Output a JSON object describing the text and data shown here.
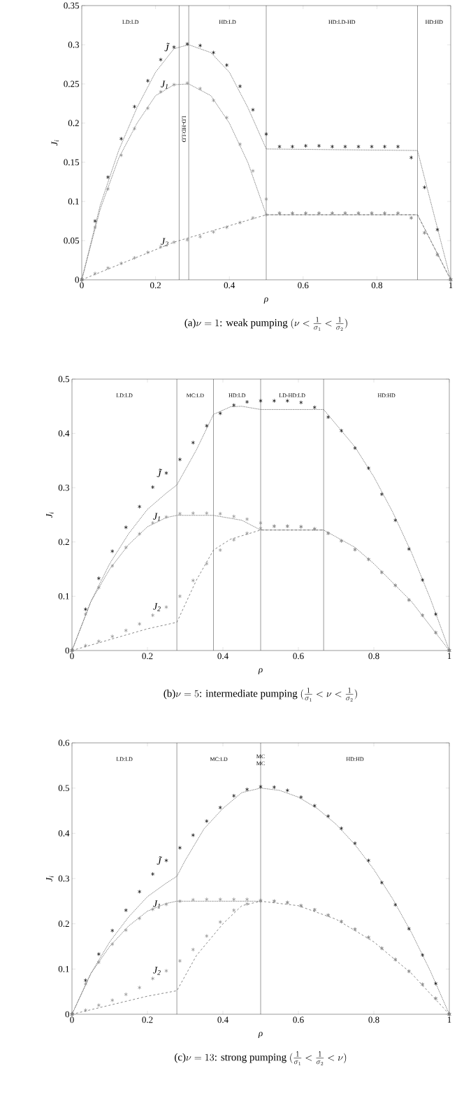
{
  "chart_data": [
    {
      "type": "scatter",
      "title": "\\text{(a)}\\nu = 1\\text{: weak pumping }(\\nu < \\frac{1}{\\sigma_1} < \\frac{1}{\\sigma_2})",
      "xlabel": "ρ",
      "ylabel": "J$_{i}$",
      "x": [
        0,
        0.036,
        0.071,
        0.107,
        0.143,
        0.179,
        0.214,
        0.25,
        0.286,
        0.321,
        0.357,
        0.393,
        0.429,
        0.464,
        0.5,
        0.536,
        0.571,
        0.607,
        0.643,
        0.679,
        0.714,
        0.75,
        0.786,
        0.821,
        0.857,
        0.893,
        0.929,
        0.964,
        1
      ],
      "xlim": [
        0,
        1
      ],
      "xticks": [
        0,
        0.2,
        0.4,
        0.6,
        0.8,
        1
      ],
      "ylim": [
        0,
        0.35
      ],
      "yticks": [
        0,
        0.05,
        0.1,
        0.15,
        0.2,
        0.25,
        0.3,
        0.35
      ],
      "marker": "cross",
      "series": [
        {
          "name": "J̃",
          "color": "#000000",
          "values": [
            0,
            0.075,
            0.131,
            0.18,
            0.221,
            0.254,
            0.281,
            0.297,
            0.301,
            0.299,
            0.29,
            0.274,
            0.247,
            0.217,
            0.186,
            0.17,
            0.17,
            0.171,
            0.171,
            0.17,
            0.17,
            0.17,
            0.17,
            0.17,
            0.17,
            0.156,
            0.118,
            0.064,
            0
          ]
        },
        {
          "name": "J$_{1}$",
          "color": "#888888",
          "values": [
            0,
            0.067,
            0.116,
            0.159,
            0.193,
            0.219,
            0.24,
            0.249,
            0.251,
            0.244,
            0.229,
            0.207,
            0.173,
            0.139,
            0.103,
            0.085,
            0.085,
            0.085,
            0.085,
            0.085,
            0.085,
            0.085,
            0.085,
            0.085,
            0.085,
            0.079,
            0.06,
            0.032,
            0
          ]
        },
        {
          "name": "J$_{2}$",
          "color": "#888888",
          "values": [
            0,
            0.008,
            0.015,
            0.021,
            0.028,
            0.035,
            0.042,
            0.048,
            0.051,
            0.055,
            0.061,
            0.067,
            0.073,
            0.079,
            0.083,
            0.085,
            0.085,
            0.085,
            0.085,
            0.085,
            0.085,
            0.085,
            0.085,
            0.085,
            0.085,
            0.079,
            0.06,
            0.032,
            0
          ]
        },
        {
          "type": "line",
          "marker": "none",
          "line_style": "dotted",
          "color": "#555555",
          "x": [
            0,
            0.05,
            0.1,
            0.15,
            0.2,
            0.25,
            0.29,
            0.35,
            0.4,
            0.45,
            0.5,
            0.91,
            1
          ],
          "values": [
            0,
            0.095,
            0.165,
            0.22,
            0.265,
            0.295,
            0.3,
            0.29,
            0.265,
            0.22,
            0.167,
            0.165,
            0
          ]
        },
        {
          "type": "line",
          "marker": "none",
          "line_style": "dotted",
          "color": "#555555",
          "x": [
            0,
            0.05,
            0.1,
            0.15,
            0.2,
            0.25,
            0.29,
            0.35,
            0.4,
            0.45,
            0.5,
            0.91,
            1
          ],
          "values": [
            0,
            0.09,
            0.155,
            0.2,
            0.235,
            0.249,
            0.25,
            0.235,
            0.2,
            0.15,
            0.083,
            0.083,
            0
          ]
        },
        {
          "type": "line",
          "marker": "none",
          "line_style": "dashed",
          "color": "#555555",
          "x": [
            0,
            0.25,
            0.5,
            0.91,
            1
          ],
          "values": [
            0,
            0.048,
            0.083,
            0.083,
            0
          ]
        }
      ],
      "ref_lines": [
        {
          "axis": "x",
          "value": 0.264
        },
        {
          "axis": "x",
          "value": 0.29
        },
        {
          "axis": "x",
          "value": 0.5
        },
        {
          "axis": "x",
          "value": 0.91
        }
      ],
      "annotations": [
        "LD:LD",
        "LD-HD:LD",
        "HD:LD",
        "HD:LD-HD",
        "HD:HD"
      ]
    },
    {
      "type": "scatter",
      "title": "\\text{(b)}\\nu = 5\\text{: intermediate pumping }(\\frac{1}{\\sigma_1} < \\nu < \\frac{1}{\\sigma_2})",
      "xlabel": "ρ",
      "ylabel": "J$_{i}$",
      "x": [
        0,
        0.036,
        0.071,
        0.107,
        0.143,
        0.179,
        0.214,
        0.25,
        0.286,
        0.321,
        0.357,
        0.393,
        0.429,
        0.464,
        0.5,
        0.536,
        0.571,
        0.607,
        0.643,
        0.679,
        0.714,
        0.75,
        0.786,
        0.821,
        0.857,
        0.893,
        0.929,
        0.964,
        1
      ],
      "xlim": [
        0,
        1
      ],
      "xticks": [
        0,
        0.2,
        0.4,
        0.6,
        0.8,
        1
      ],
      "ylim": [
        0,
        0.5
      ],
      "yticks": [
        0,
        0.1,
        0.2,
        0.3,
        0.4,
        0.5
      ],
      "marker": "cross",
      "series": [
        {
          "name": "J̃",
          "color": "#000000",
          "values": [
            0,
            0.076,
            0.133,
            0.183,
            0.227,
            0.265,
            0.301,
            0.327,
            0.352,
            0.383,
            0.414,
            0.437,
            0.452,
            0.458,
            0.46,
            0.46,
            0.46,
            0.457,
            0.448,
            0.43,
            0.405,
            0.373,
            0.336,
            0.288,
            0.24,
            0.187,
            0.13,
            0.067,
            0
          ]
        },
        {
          "name": "J$_{1}$",
          "color": "#888888",
          "values": [
            0,
            0.067,
            0.116,
            0.156,
            0.19,
            0.215,
            0.235,
            0.246,
            0.252,
            0.253,
            0.253,
            0.252,
            0.247,
            0.242,
            0.235,
            0.229,
            0.229,
            0.228,
            0.224,
            0.216,
            0.202,
            0.186,
            0.168,
            0.144,
            0.12,
            0.093,
            0.065,
            0.033,
            0
          ]
        },
        {
          "name": "J$_{2}$",
          "color": "#888888",
          "values": [
            0,
            0.009,
            0.017,
            0.026,
            0.037,
            0.049,
            0.065,
            0.08,
            0.1,
            0.129,
            0.16,
            0.185,
            0.204,
            0.216,
            0.225,
            0.229,
            0.229,
            0.228,
            0.224,
            0.216,
            0.202,
            0.186,
            0.168,
            0.144,
            0.12,
            0.093,
            0.065,
            0.033,
            0
          ]
        },
        {
          "type": "line",
          "marker": "none",
          "line_style": "dotted",
          "color": "#555555",
          "x": [
            0,
            0.05,
            0.1,
            0.15,
            0.2,
            0.25,
            0.278,
            0.33,
            0.375,
            0.42,
            0.45,
            0.5,
            0.667,
            0.75,
            0.8,
            0.85,
            0.9,
            0.95,
            1
          ],
          "values": [
            0,
            0.09,
            0.16,
            0.215,
            0.26,
            0.29,
            0.305,
            0.37,
            0.435,
            0.449,
            0.45,
            0.444,
            0.444,
            0.375,
            0.32,
            0.255,
            0.18,
            0.095,
            0
          ]
        },
        {
          "type": "line",
          "marker": "none",
          "line_style": "dotted",
          "color": "#555555",
          "x": [
            0,
            0.05,
            0.1,
            0.15,
            0.2,
            0.25,
            0.278,
            0.375,
            0.45,
            0.5,
            0.667,
            0.75,
            0.8,
            0.85,
            0.9,
            0.95,
            1
          ],
          "values": [
            0,
            0.09,
            0.15,
            0.195,
            0.228,
            0.245,
            0.249,
            0.249,
            0.24,
            0.222,
            0.222,
            0.19,
            0.16,
            0.125,
            0.09,
            0.045,
            0
          ]
        },
        {
          "type": "line",
          "marker": "none",
          "line_style": "dashed",
          "color": "#555555",
          "x": [
            0,
            0.1,
            0.2,
            0.278,
            0.33,
            0.375,
            0.42,
            0.5,
            0.667
          ],
          "values": [
            0,
            0.02,
            0.04,
            0.052,
            0.13,
            0.185,
            0.205,
            0.222,
            0.222
          ]
        }
      ],
      "ref_lines": [
        {
          "axis": "x",
          "value": 0.278
        },
        {
          "axis": "x",
          "value": 0.375
        },
        {
          "axis": "x",
          "value": 0.5
        },
        {
          "axis": "x",
          "value": 0.667
        }
      ],
      "annotations": [
        "LD:LD",
        "MC:LD",
        "HD:LD",
        "LD-HD:LD",
        "HD:HD"
      ]
    },
    {
      "type": "scatter",
      "title": "\\text{(c)}\\nu = 13\\text{: strong pumping }(\\frac{1}{\\sigma_1} < \\frac{1}{\\sigma_2} < \\nu)",
      "xlabel": "ρ",
      "ylabel": "J$_{i}$",
      "x": [
        0,
        0.036,
        0.071,
        0.107,
        0.143,
        0.179,
        0.214,
        0.25,
        0.286,
        0.321,
        0.357,
        0.393,
        0.429,
        0.464,
        0.5,
        0.536,
        0.571,
        0.607,
        0.643,
        0.679,
        0.714,
        0.75,
        0.786,
        0.821,
        0.857,
        0.893,
        0.929,
        0.964,
        1
      ],
      "xlim": [
        0,
        1
      ],
      "xticks": [
        0,
        0.2,
        0.4,
        0.6,
        0.8,
        1
      ],
      "ylim": [
        0,
        0.6
      ],
      "yticks": [
        0,
        0.1,
        0.2,
        0.3,
        0.4,
        0.5,
        0.6
      ],
      "marker": "cross",
      "series": [
        {
          "name": "J̃",
          "color": "#000000",
          "values": [
            0,
            0.075,
            0.133,
            0.185,
            0.23,
            0.271,
            0.31,
            0.34,
            0.368,
            0.396,
            0.427,
            0.457,
            0.483,
            0.497,
            0.503,
            0.502,
            0.495,
            0.48,
            0.461,
            0.438,
            0.411,
            0.378,
            0.34,
            0.291,
            0.242,
            0.189,
            0.131,
            0.068,
            0
          ]
        },
        {
          "name": "J$_{1}$",
          "color": "#888888",
          "values": [
            0,
            0.067,
            0.115,
            0.155,
            0.186,
            0.212,
            0.232,
            0.243,
            0.25,
            0.253,
            0.254,
            0.254,
            0.254,
            0.254,
            0.252,
            0.25,
            0.247,
            0.24,
            0.231,
            0.219,
            0.205,
            0.188,
            0.17,
            0.146,
            0.121,
            0.095,
            0.066,
            0.035,
            0
          ]
        },
        {
          "name": "J$_{2}$",
          "color": "#888888",
          "values": [
            0,
            0.009,
            0.02,
            0.031,
            0.044,
            0.059,
            0.079,
            0.096,
            0.118,
            0.143,
            0.173,
            0.204,
            0.23,
            0.244,
            0.25,
            0.25,
            0.247,
            0.24,
            0.231,
            0.219,
            0.205,
            0.188,
            0.17,
            0.146,
            0.121,
            0.095,
            0.066,
            0.035,
            0
          ]
        },
        {
          "type": "line",
          "marker": "none",
          "line_style": "dotted",
          "color": "#555555",
          "x": [
            0,
            0.05,
            0.1,
            0.15,
            0.2,
            0.25,
            0.278,
            0.3,
            0.35,
            0.4,
            0.45,
            0.5,
            0.55,
            0.6,
            0.65,
            0.7,
            0.75,
            0.8,
            0.85,
            0.9,
            0.95,
            1
          ],
          "values": [
            0,
            0.09,
            0.16,
            0.215,
            0.26,
            0.29,
            0.305,
            0.34,
            0.41,
            0.455,
            0.49,
            0.5,
            0.495,
            0.48,
            0.455,
            0.42,
            0.375,
            0.32,
            0.255,
            0.18,
            0.095,
            0
          ]
        },
        {
          "type": "line",
          "marker": "none",
          "line_style": "dotted",
          "color": "#555555",
          "x": [
            0,
            0.05,
            0.1,
            0.15,
            0.2,
            0.25,
            0.278,
            0.5
          ],
          "values": [
            0,
            0.09,
            0.15,
            0.195,
            0.228,
            0.245,
            0.25,
            0.25
          ]
        },
        {
          "type": "line",
          "marker": "none",
          "line_style": "dashed",
          "color": "#555555",
          "x": [
            0,
            0.1,
            0.2,
            0.278,
            0.33,
            0.4,
            0.45,
            0.5,
            0.6,
            0.7,
            0.8,
            0.9,
            1
          ],
          "values": [
            0,
            0.02,
            0.04,
            0.052,
            0.13,
            0.2,
            0.24,
            0.25,
            0.24,
            0.21,
            0.16,
            0.09,
            0
          ]
        }
      ],
      "ref_lines": [
        {
          "axis": "x",
          "value": 0.278
        },
        {
          "axis": "x",
          "value": 0.5,
          "label": "MC MC"
        }
      ],
      "annotations": [
        "LD:LD",
        "MC:LD",
        "HD:HD"
      ]
    }
  ]
}
